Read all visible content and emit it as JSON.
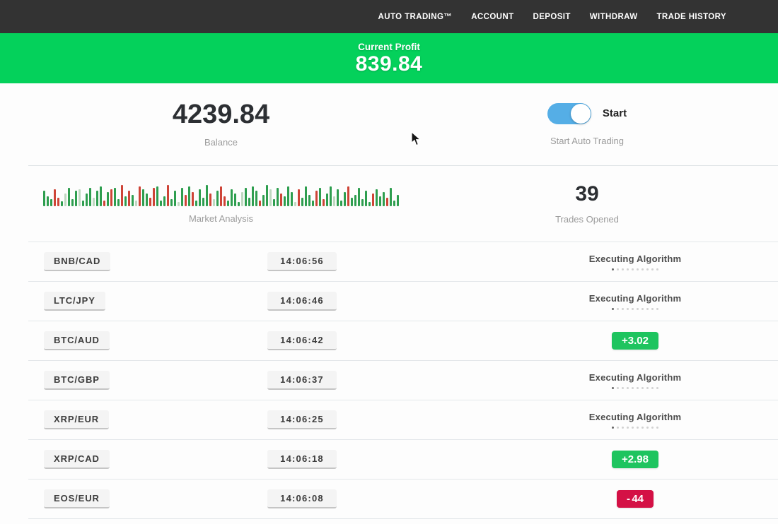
{
  "nav": {
    "items": [
      {
        "label": "AUTO TRADING™"
      },
      {
        "label": "ACCOUNT"
      },
      {
        "label": "DEPOSIT"
      },
      {
        "label": "WITHDRAW"
      },
      {
        "label": "TRADE HISTORY"
      }
    ]
  },
  "banner": {
    "label": "Current Profit",
    "value": "839.84"
  },
  "stats": {
    "balance": {
      "value": "4239.84",
      "label": "Balance"
    },
    "auto_trading": {
      "toggle_on": true,
      "toggle_label": "Start",
      "label": "Start Auto Trading"
    },
    "market": {
      "label": "Market Analysis"
    },
    "trades_opened": {
      "value": "39",
      "label": "Trades Opened"
    }
  },
  "trades": {
    "executing_label": "Executing Algorithm",
    "executing_dots": {
      "count": 10,
      "active_index": 0
    },
    "rows": [
      {
        "pair": "BNB/CAD",
        "time": "14:06:56",
        "status": "executing"
      },
      {
        "pair": "LTC/JPY",
        "time": "14:06:46",
        "status": "executing"
      },
      {
        "pair": "BTC/AUD",
        "time": "14:06:42",
        "status": "profit",
        "sign": "+",
        "amount": "3.02"
      },
      {
        "pair": "BTC/GBP",
        "time": "14:06:37",
        "status": "executing"
      },
      {
        "pair": "XRP/EUR",
        "time": "14:06:25",
        "status": "executing"
      },
      {
        "pair": "XRP/CAD",
        "time": "14:06:18",
        "status": "profit",
        "sign": "+",
        "amount": "2.98"
      },
      {
        "pair": "EOS/EUR",
        "time": "14:06:08",
        "status": "loss",
        "sign": "-",
        "amount": "44"
      }
    ]
  },
  "chart_data": {
    "type": "bar",
    "title": "Market Analysis",
    "xlabel": "",
    "ylabel": "",
    "legend": false,
    "grid": false,
    "note": "decorative market-activity sparkline of green/red price bars, bottom-aligned, heights in px (max 30)",
    "colors": {
      "g": "#2e9e4f",
      "r": "#ce4437",
      "p": "#bfd8c1"
    },
    "bars": [
      [
        22,
        "g"
      ],
      [
        14,
        "g"
      ],
      [
        10,
        "g"
      ],
      [
        24,
        "r"
      ],
      [
        12,
        "r"
      ],
      [
        7,
        "g"
      ],
      [
        18,
        "p"
      ],
      [
        26,
        "g"
      ],
      [
        10,
        "g"
      ],
      [
        22,
        "g"
      ],
      [
        24,
        "p"
      ],
      [
        8,
        "g"
      ],
      [
        18,
        "g"
      ],
      [
        26,
        "g"
      ],
      [
        12,
        "p"
      ],
      [
        22,
        "g"
      ],
      [
        28,
        "g"
      ],
      [
        8,
        "r"
      ],
      [
        20,
        "g"
      ],
      [
        24,
        "r"
      ],
      [
        26,
        "g"
      ],
      [
        10,
        "g"
      ],
      [
        30,
        "r"
      ],
      [
        14,
        "g"
      ],
      [
        22,
        "r"
      ],
      [
        16,
        "g"
      ],
      [
        8,
        "p"
      ],
      [
        28,
        "r"
      ],
      [
        24,
        "g"
      ],
      [
        18,
        "g"
      ],
      [
        12,
        "r"
      ],
      [
        26,
        "r"
      ],
      [
        28,
        "g"
      ],
      [
        8,
        "g"
      ],
      [
        14,
        "g"
      ],
      [
        30,
        "r"
      ],
      [
        10,
        "g"
      ],
      [
        22,
        "g"
      ],
      [
        6,
        "p"
      ],
      [
        26,
        "g"
      ],
      [
        16,
        "r"
      ],
      [
        28,
        "g"
      ],
      [
        20,
        "r"
      ],
      [
        8,
        "g"
      ],
      [
        24,
        "g"
      ],
      [
        12,
        "g"
      ],
      [
        30,
        "g"
      ],
      [
        18,
        "r"
      ],
      [
        10,
        "p"
      ],
      [
        22,
        "g"
      ],
      [
        28,
        "r"
      ],
      [
        14,
        "r"
      ],
      [
        8,
        "g"
      ],
      [
        24,
        "g"
      ],
      [
        18,
        "g"
      ],
      [
        6,
        "g"
      ],
      [
        20,
        "p"
      ],
      [
        26,
        "g"
      ],
      [
        12,
        "g"
      ],
      [
        28,
        "g"
      ],
      [
        22,
        "g"
      ],
      [
        8,
        "r"
      ],
      [
        16,
        "g"
      ],
      [
        30,
        "g"
      ],
      [
        24,
        "p"
      ],
      [
        10,
        "g"
      ],
      [
        26,
        "g"
      ],
      [
        18,
        "r"
      ],
      [
        14,
        "g"
      ],
      [
        28,
        "g"
      ],
      [
        20,
        "g"
      ],
      [
        6,
        "p"
      ],
      [
        24,
        "r"
      ],
      [
        12,
        "g"
      ],
      [
        28,
        "g"
      ],
      [
        16,
        "g"
      ],
      [
        8,
        "g"
      ],
      [
        22,
        "r"
      ],
      [
        26,
        "g"
      ],
      [
        10,
        "r"
      ],
      [
        18,
        "g"
      ],
      [
        28,
        "g"
      ],
      [
        14,
        "p"
      ],
      [
        24,
        "g"
      ],
      [
        8,
        "g"
      ],
      [
        20,
        "g"
      ],
      [
        28,
        "r"
      ],
      [
        12,
        "g"
      ],
      [
        16,
        "g"
      ],
      [
        26,
        "g"
      ],
      [
        10,
        "g"
      ],
      [
        22,
        "g"
      ],
      [
        6,
        "g"
      ],
      [
        18,
        "r"
      ],
      [
        24,
        "g"
      ],
      [
        14,
        "g"
      ],
      [
        20,
        "g"
      ],
      [
        12,
        "r"
      ],
      [
        26,
        "g"
      ],
      [
        8,
        "g"
      ],
      [
        16,
        "g"
      ]
    ]
  },
  "colors": {
    "nav_bg": "#333333",
    "banner_green": "#04d15b",
    "profit_green": "#1ec45f",
    "loss_red": "#d41145",
    "toggle_blue": "#55aee6"
  }
}
